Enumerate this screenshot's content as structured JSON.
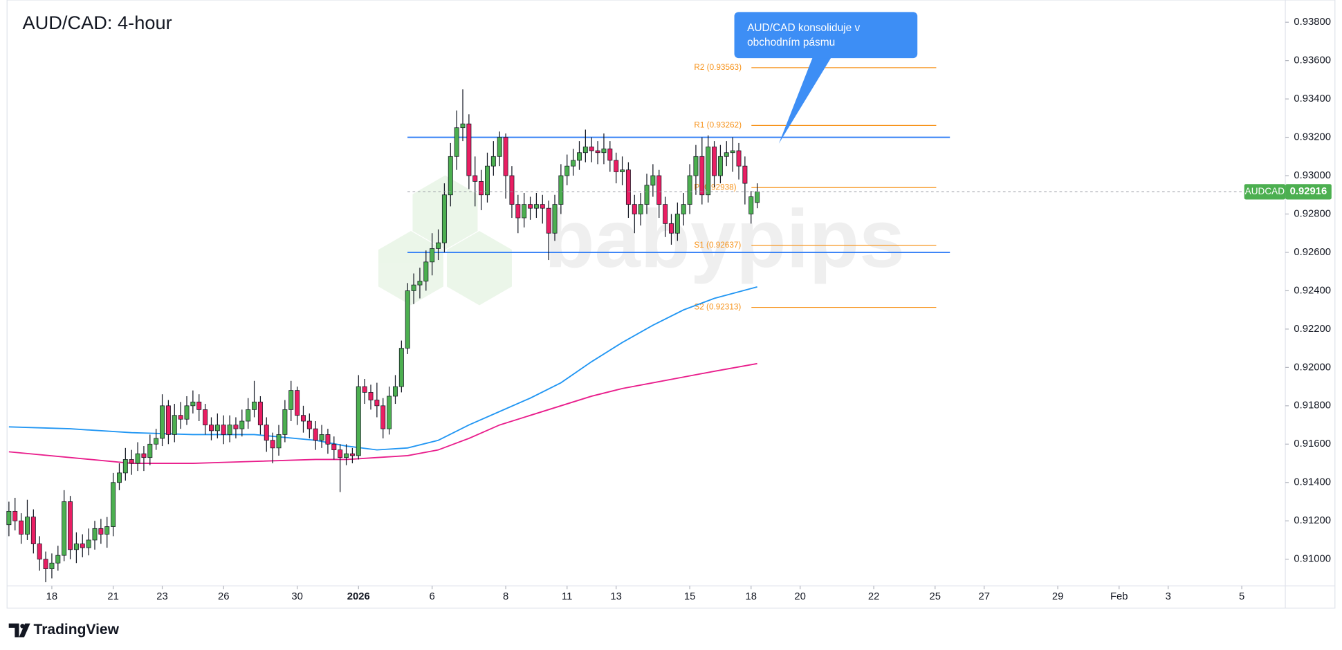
{
  "chart_data": {
    "type": "candlestick",
    "title": "AUD/CAD: 4-hour",
    "annotation": [
      "AUD/CAD konsoliduje v",
      "obchodním pásmu"
    ],
    "watermark": "babypips",
    "source": "TradingView",
    "xlim": [
      -0.3,
      208.1
    ],
    "xticks": [
      {
        "value": 7,
        "label": "18"
      },
      {
        "value": 17,
        "label": "21"
      },
      {
        "value": 25,
        "label": "23"
      },
      {
        "value": 35,
        "label": "26"
      },
      {
        "value": 47,
        "label": "30"
      },
      {
        "value": 57,
        "label": "2026"
      },
      {
        "value": 69,
        "label": "6"
      },
      {
        "value": 81,
        "label": "8"
      },
      {
        "value": 91,
        "label": "11"
      },
      {
        "value": 99,
        "label": "13"
      },
      {
        "value": 111,
        "label": "15"
      },
      {
        "value": 121,
        "label": "18"
      },
      {
        "value": 129,
        "label": "20"
      },
      {
        "value": 141,
        "label": "22"
      },
      {
        "value": 151,
        "label": "25"
      },
      {
        "value": 159,
        "label": "27"
      },
      {
        "value": 171,
        "label": "29"
      },
      {
        "value": 181,
        "label": "Feb"
      },
      {
        "value": 189,
        "label": "3"
      },
      {
        "value": 201,
        "label": "5"
      }
    ],
    "ylim": [
      0.90861,
      0.93916
    ],
    "yticks": [
      {
        "value": 0.938,
        "label": "0.93800"
      },
      {
        "value": 0.936,
        "label": "0.93600"
      },
      {
        "value": 0.934,
        "label": "0.93400"
      },
      {
        "value": 0.932,
        "label": "0.93200"
      },
      {
        "value": 0.93,
        "label": "0.93000"
      },
      {
        "value": 0.928,
        "label": "0.92800"
      },
      {
        "value": 0.926,
        "label": "0.92600"
      },
      {
        "value": 0.924,
        "label": "0.92400"
      },
      {
        "value": 0.922,
        "label": "0.92200"
      },
      {
        "value": 0.92,
        "label": "0.92000"
      },
      {
        "value": 0.918,
        "label": "0.91800"
      },
      {
        "value": 0.916,
        "label": "0.91600"
      },
      {
        "value": 0.914,
        "label": "0.91400"
      },
      {
        "value": 0.912,
        "label": "0.91200"
      },
      {
        "value": 0.91,
        "label": "0.91000"
      }
    ],
    "zones": [
      {
        "value": 0.932,
        "color": "#2e7cf6"
      },
      {
        "value": 0.926,
        "color": "#2e7cf6"
      }
    ],
    "pivots": [
      {
        "label": "R2 (0.93563)",
        "value": 0.93563
      },
      {
        "label": "R1 (0.93262)",
        "value": 0.93262
      },
      {
        "label": "P (0.92938)",
        "value": 0.92938
      },
      {
        "label": "S1 (0.92637)",
        "value": 0.92637
      },
      {
        "label": "S2 (0.92313)",
        "value": 0.92313
      }
    ],
    "pivot_color": "#f7941d",
    "series": [
      {
        "name": "AUDCAD",
        "type": "candlestick",
        "up_color": "#4caf50",
        "down_color": "#e91e63",
        "open": [
          0.9118,
          0.9125,
          0.912,
          0.9113,
          0.9122,
          0.9108,
          0.91,
          0.9095,
          0.9098,
          0.9102,
          0.913,
          0.9105,
          0.9108,
          0.9106,
          0.911,
          0.9116,
          0.9113,
          0.9117,
          0.914,
          0.9145,
          0.9152,
          0.915,
          0.9155,
          0.9153,
          0.916,
          0.9163,
          0.918,
          0.9165,
          0.9175,
          0.9173,
          0.918,
          0.9182,
          0.9178,
          0.917,
          0.9167,
          0.917,
          0.9165,
          0.917,
          0.9168,
          0.9172,
          0.9178,
          0.9182,
          0.917,
          0.9162,
          0.9158,
          0.9165,
          0.9178,
          0.9188,
          0.9175,
          0.9172,
          0.9168,
          0.9162,
          0.9165,
          0.916,
          0.9157,
          0.9153,
          0.9155,
          0.9154,
          0.919,
          0.9187,
          0.9183,
          0.918,
          0.9168,
          0.9185,
          0.919,
          0.921,
          0.924,
          0.9243,
          0.9245,
          0.9255,
          0.9262,
          0.9265,
          0.929,
          0.931,
          0.9325,
          0.9327,
          0.93,
          0.9297,
          0.929,
          0.9305,
          0.931,
          0.932,
          0.93,
          0.9285,
          0.9278,
          0.9285,
          0.9283,
          0.9285,
          0.9283,
          0.927,
          0.9285,
          0.93,
          0.9305,
          0.9308,
          0.9312,
          0.9315,
          0.9313,
          0.9312,
          0.9314,
          0.9308,
          0.9302,
          0.9303,
          0.9285,
          0.928,
          0.9285,
          0.9295,
          0.93,
          0.9285,
          0.9275,
          0.927,
          0.928,
          0.9285,
          0.93,
          0.931,
          0.929,
          0.9315,
          0.93,
          0.931,
          0.9312,
          0.9313,
          0.9305,
          0.928,
          0.9286
        ],
        "high": [
          0.913,
          0.9132,
          0.9124,
          0.9131,
          0.9126,
          0.9112,
          0.9104,
          0.9103,
          0.9107,
          0.9136,
          0.9133,
          0.9114,
          0.9113,
          0.9116,
          0.912,
          0.9121,
          0.9122,
          0.9145,
          0.915,
          0.9158,
          0.9157,
          0.9161,
          0.9159,
          0.9165,
          0.9168,
          0.9186,
          0.9183,
          0.9181,
          0.9182,
          0.9185,
          0.9188,
          0.9186,
          0.9181,
          0.9174,
          0.9176,
          0.9175,
          0.9175,
          0.9174,
          0.9178,
          0.9184,
          0.9193,
          0.9185,
          0.9174,
          0.9166,
          0.917,
          0.9183,
          0.9193,
          0.919,
          0.918,
          0.9176,
          0.9172,
          0.917,
          0.9168,
          0.9164,
          0.916,
          0.916,
          0.9158,
          0.9196,
          0.9194,
          0.9191,
          0.9192,
          0.9184,
          0.919,
          0.9196,
          0.9214,
          0.9244,
          0.9249,
          0.9252,
          0.9261,
          0.927,
          0.9272,
          0.9296,
          0.9317,
          0.9334,
          0.9345,
          0.9332,
          0.931,
          0.9303,
          0.9312,
          0.9318,
          0.9323,
          0.9322,
          0.9305,
          0.929,
          0.9291,
          0.9289,
          0.9291,
          0.929,
          0.9287,
          0.929,
          0.9306,
          0.9311,
          0.9314,
          0.9318,
          0.9324,
          0.932,
          0.9318,
          0.9322,
          0.9318,
          0.9312,
          0.931,
          0.9307,
          0.929,
          0.9291,
          0.9301,
          0.9306,
          0.9303,
          0.9289,
          0.928,
          0.9286,
          0.9291,
          0.9306,
          0.9316,
          0.932,
          0.9321,
          0.9318,
          0.9316,
          0.9318,
          0.932,
          0.9317,
          0.931,
          0.9292,
          0.9296
        ],
        "low": [
          0.9112,
          0.9115,
          0.9108,
          0.911,
          0.9103,
          0.9094,
          0.9088,
          0.909,
          0.9094,
          0.9099,
          0.91,
          0.9098,
          0.9101,
          0.9102,
          0.9105,
          0.9108,
          0.9106,
          0.9112,
          0.9136,
          0.9141,
          0.9144,
          0.9146,
          0.9146,
          0.9149,
          0.9157,
          0.9159,
          0.916,
          0.9161,
          0.9168,
          0.917,
          0.9176,
          0.9172,
          0.9165,
          0.9162,
          0.9163,
          0.916,
          0.9161,
          0.9163,
          0.9164,
          0.9168,
          0.9174,
          0.9165,
          0.9156,
          0.915,
          0.9154,
          0.9161,
          0.9172,
          0.917,
          0.9166,
          0.9163,
          0.9157,
          0.9158,
          0.9155,
          0.9152,
          0.9135,
          0.9149,
          0.915,
          0.9152,
          0.9181,
          0.9178,
          0.9174,
          0.9163,
          0.9165,
          0.9181,
          0.9187,
          0.9207,
          0.9233,
          0.9236,
          0.924,
          0.9248,
          0.9256,
          0.926,
          0.9284,
          0.9303,
          0.9318,
          0.9293,
          0.9284,
          0.9282,
          0.9286,
          0.93,
          0.9305,
          0.9288,
          0.9278,
          0.927,
          0.9273,
          0.9277,
          0.9278,
          0.9275,
          0.9256,
          0.9266,
          0.928,
          0.9295,
          0.93,
          0.9303,
          0.9307,
          0.9307,
          0.9306,
          0.9306,
          0.9302,
          0.9296,
          0.9295,
          0.9278,
          0.927,
          0.9274,
          0.928,
          0.9289,
          0.9278,
          0.9268,
          0.9264,
          0.9266,
          0.9274,
          0.928,
          0.929,
          0.9285,
          0.9286,
          0.9294,
          0.9296,
          0.9305,
          0.9302,
          0.9298,
          0.9285,
          0.9275,
          0.9283
        ],
        "close": [
          0.9125,
          0.912,
          0.9113,
          0.9122,
          0.9108,
          0.91,
          0.9095,
          0.9098,
          0.9102,
          0.913,
          0.9105,
          0.9108,
          0.9106,
          0.911,
          0.9116,
          0.9113,
          0.9117,
          0.914,
          0.9145,
          0.9152,
          0.915,
          0.9155,
          0.9153,
          0.916,
          0.9163,
          0.918,
          0.9165,
          0.9175,
          0.9173,
          0.918,
          0.9182,
          0.9178,
          0.917,
          0.9167,
          0.917,
          0.9165,
          0.917,
          0.9168,
          0.9172,
          0.9178,
          0.9182,
          0.917,
          0.9162,
          0.9158,
          0.9165,
          0.9178,
          0.9188,
          0.9175,
          0.9172,
          0.9168,
          0.9162,
          0.9165,
          0.916,
          0.9157,
          0.9153,
          0.9155,
          0.9154,
          0.919,
          0.9187,
          0.9183,
          0.918,
          0.9168,
          0.9185,
          0.919,
          0.921,
          0.924,
          0.9243,
          0.9245,
          0.9255,
          0.9262,
          0.9265,
          0.929,
          0.931,
          0.9325,
          0.9327,
          0.93,
          0.9297,
          0.929,
          0.9305,
          0.931,
          0.932,
          0.93,
          0.9285,
          0.9278,
          0.9285,
          0.9283,
          0.9285,
          0.9283,
          0.927,
          0.9285,
          0.93,
          0.9305,
          0.9308,
          0.9312,
          0.9315,
          0.9313,
          0.9312,
          0.9314,
          0.9308,
          0.9302,
          0.9303,
          0.9285,
          0.928,
          0.9285,
          0.9295,
          0.93,
          0.9285,
          0.9275,
          0.927,
          0.928,
          0.9285,
          0.93,
          0.931,
          0.929,
          0.9315,
          0.93,
          0.931,
          0.9312,
          0.9313,
          0.9305,
          0.9296,
          0.9289,
          0.92916
        ]
      },
      {
        "type": "line",
        "color": "#2196f3",
        "x": [
          0,
          10,
          20,
          30,
          40,
          50,
          55,
          60,
          65,
          70,
          75,
          80,
          85,
          90,
          95,
          100,
          105,
          110,
          115,
          122
        ],
        "values": [
          0.9169,
          0.9168,
          0.9166,
          0.9165,
          0.9165,
          0.9162,
          0.9159,
          0.9157,
          0.9158,
          0.9162,
          0.917,
          0.9177,
          0.9184,
          0.9192,
          0.9203,
          0.9213,
          0.9222,
          0.923,
          0.9236,
          0.9242
        ]
      },
      {
        "type": "line",
        "color": "#e91e8c",
        "x": [
          0,
          10,
          20,
          30,
          40,
          50,
          55,
          60,
          65,
          70,
          75,
          80,
          85,
          90,
          95,
          100,
          105,
          110,
          115,
          122
        ],
        "values": [
          0.9156,
          0.9153,
          0.915,
          0.915,
          0.9151,
          0.9152,
          0.9152,
          0.9153,
          0.9154,
          0.9157,
          0.9163,
          0.917,
          0.9175,
          0.918,
          0.9185,
          0.9189,
          0.9192,
          0.9195,
          0.9198,
          0.9202
        ]
      }
    ]
  }
}
